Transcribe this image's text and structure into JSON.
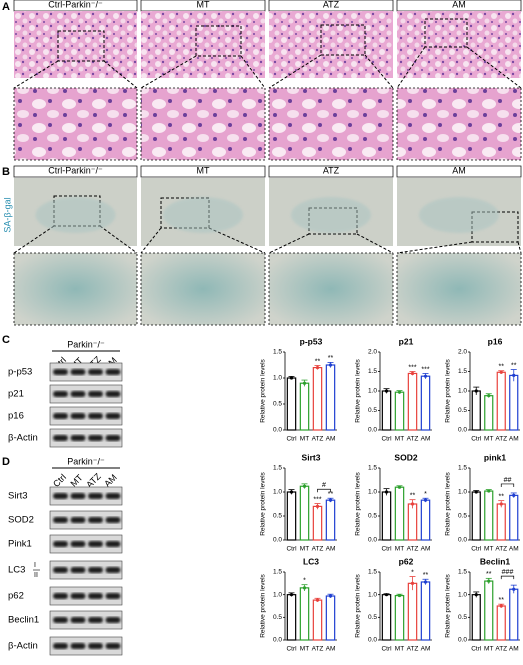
{
  "panel_a": {
    "label": "A",
    "columns": [
      "Ctrl-Parkin⁻/⁻",
      "MT",
      "ATZ",
      "AM"
    ]
  },
  "panel_b": {
    "label": "B",
    "columns": [
      "Ctrl-Parkin⁻/⁻",
      "MT",
      "ATZ",
      "AM"
    ],
    "stain": "SA-β-gal"
  },
  "panel_c": {
    "label": "C",
    "blot": {
      "group": "Parkin⁻/⁻",
      "lanes": [
        "Ctrl",
        "MT",
        "ATZ",
        "AM"
      ],
      "rows": [
        "p-p53",
        "p21",
        "p16",
        "β-Actin"
      ]
    }
  },
  "panel_d": {
    "label": "D",
    "blot": {
      "group": "Parkin⁻/⁻",
      "lanes": [
        "Ctrl",
        "MT",
        "ATZ",
        "AM"
      ],
      "rows": [
        "Sirt3",
        "SOD2",
        "Pink1",
        "LC3",
        "p62",
        "Beclin1",
        "β-Actin"
      ],
      "lc3_forms": [
        "I",
        "II"
      ]
    }
  },
  "chart_data": [
    {
      "type": "bar",
      "title": "p-p53",
      "y_label": "Relative protein levels",
      "categories": [
        "Ctrl",
        "MT",
        "ATZ",
        "AM"
      ],
      "colors": [
        "#000000",
        "#2ca02c",
        "#e8413c",
        "#1f3fd1"
      ],
      "values": [
        1.0,
        0.9,
        1.2,
        1.25
      ],
      "errors": [
        0.03,
        0.06,
        0.04,
        0.05
      ],
      "significance": [
        null,
        null,
        "**",
        "**"
      ],
      "ylim": [
        0,
        1.5
      ],
      "yticks": [
        {
          "value": 0,
          "label": "0.0"
        },
        0.5,
        {
          "value": 1,
          "label": "1.0"
        },
        1.5
      ]
    },
    {
      "type": "bar",
      "title": "p21",
      "y_label": "Relative protein levels",
      "categories": [
        "Ctrl",
        "MT",
        "ATZ",
        "AM"
      ],
      "colors": [
        "#000000",
        "#2ca02c",
        "#e8413c",
        "#1f3fd1"
      ],
      "values": [
        1.0,
        0.97,
        1.45,
        1.38
      ],
      "errors": [
        0.06,
        0.04,
        0.05,
        0.07
      ],
      "significance": [
        null,
        null,
        "***",
        "***"
      ],
      "ylim": [
        0,
        2
      ],
      "yticks": [
        {
          "value": 0,
          "label": "0.0"
        },
        0.5,
        {
          "value": 1,
          "label": "1.0"
        },
        1.5,
        {
          "value": 2,
          "label": "2.0"
        }
      ]
    },
    {
      "type": "bar",
      "title": "p16",
      "y_label": "Relative protein levels",
      "categories": [
        "Ctrl",
        "MT",
        "ATZ",
        "AM"
      ],
      "colors": [
        "#000000",
        "#2ca02c",
        "#e8413c",
        "#1f3fd1"
      ],
      "values": [
        1.0,
        0.88,
        1.48,
        1.4
      ],
      "errors": [
        0.1,
        0.05,
        0.04,
        0.15
      ],
      "significance": [
        null,
        null,
        "**",
        "**"
      ],
      "ylim": [
        0,
        2
      ],
      "yticks": [
        {
          "value": 0,
          "label": "0.0"
        },
        0.5,
        {
          "value": 1,
          "label": "1.0"
        },
        1.5,
        {
          "value": 2,
          "label": "2.0"
        }
      ]
    },
    {
      "type": "bar",
      "title": "Sirt3",
      "y_label": "Relative protein levels",
      "categories": [
        "Ctrl",
        "MT",
        "ATZ",
        "AM"
      ],
      "colors": [
        "#000000",
        "#2ca02c",
        "#e8413c",
        "#1f3fd1"
      ],
      "values": [
        1.0,
        1.12,
        0.7,
        0.83
      ],
      "errors": [
        0.05,
        0.05,
        0.06,
        0.04
      ],
      "significance": [
        null,
        null,
        "***",
        "**"
      ],
      "bracket_label": "#",
      "ylim": [
        0,
        1.5
      ],
      "yticks": [
        {
          "value": 0,
          "label": "0.0"
        },
        0.5,
        {
          "value": 1,
          "label": "1.0"
        },
        1.5
      ]
    },
    {
      "type": "bar",
      "title": "SOD2",
      "y_label": "Relative protein levels",
      "categories": [
        "Ctrl",
        "MT",
        "ATZ",
        "AM"
      ],
      "colors": [
        "#000000",
        "#2ca02c",
        "#e8413c",
        "#1f3fd1"
      ],
      "values": [
        1.0,
        1.1,
        0.75,
        0.83
      ],
      "errors": [
        0.07,
        0.03,
        0.09,
        0.04
      ],
      "significance": [
        null,
        null,
        "**",
        "*"
      ],
      "ylim": [
        0,
        1.5
      ],
      "yticks": [
        {
          "value": 0,
          "label": "0.0"
        },
        0.5,
        {
          "value": 1,
          "label": "1.0"
        },
        1.5
      ]
    },
    {
      "type": "bar",
      "title": "pink1",
      "y_label": "Relative protein levels",
      "categories": [
        "Ctrl",
        "MT",
        "ATZ",
        "AM"
      ],
      "colors": [
        "#000000",
        "#2ca02c",
        "#e8413c",
        "#1f3fd1"
      ],
      "values": [
        1.0,
        1.02,
        0.75,
        0.93
      ],
      "errors": [
        0.03,
        0.03,
        0.07,
        0.05
      ],
      "significance": [
        null,
        null,
        "**",
        null
      ],
      "bracket_label": "##",
      "ylim": [
        0,
        1.5
      ],
      "yticks": [
        {
          "value": 0,
          "label": "0.0"
        },
        0.5,
        {
          "value": 1,
          "label": "1.0"
        },
        1.5
      ]
    },
    {
      "type": "bar",
      "title": "LC3",
      "y_label": "Relative protein levels",
      "categories": [
        "Ctrl",
        "MT",
        "ATZ",
        "AM"
      ],
      "colors": [
        "#000000",
        "#2ca02c",
        "#e8413c",
        "#1f3fd1"
      ],
      "values": [
        1.0,
        1.15,
        0.88,
        0.97
      ],
      "errors": [
        0.04,
        0.07,
        0.04,
        0.04
      ],
      "significance": [
        null,
        "*",
        null,
        null
      ],
      "ylim": [
        0,
        1.5
      ],
      "yticks": [
        {
          "value": 0,
          "label": "0.0"
        },
        0.5,
        {
          "value": 1,
          "label": "1.0"
        },
        1.5
      ]
    },
    {
      "type": "bar",
      "title": "p62",
      "y_label": "Relative protein levels",
      "categories": [
        "Ctrl",
        "MT",
        "ATZ",
        "AM"
      ],
      "colors": [
        "#000000",
        "#2ca02c",
        "#e8413c",
        "#1f3fd1"
      ],
      "values": [
        1.0,
        0.98,
        1.25,
        1.28
      ],
      "errors": [
        0.02,
        0.03,
        0.15,
        0.06
      ],
      "significance": [
        null,
        null,
        "*",
        "**"
      ],
      "ylim": [
        0,
        1.5
      ],
      "yticks": [
        {
          "value": 0,
          "label": "0.0"
        },
        0.5,
        {
          "value": 1,
          "label": "1.0"
        },
        1.5
      ]
    },
    {
      "type": "bar",
      "title": "Beclin1",
      "y_label": "Relative protein levels",
      "categories": [
        "Ctrl",
        "MT",
        "ATZ",
        "AM"
      ],
      "colors": [
        "#000000",
        "#2ca02c",
        "#e8413c",
        "#1f3fd1"
      ],
      "values": [
        1.0,
        1.3,
        0.75,
        1.12
      ],
      "errors": [
        0.06,
        0.06,
        0.04,
        0.09
      ],
      "significance": [
        null,
        "**",
        "**",
        null
      ],
      "bracket_label": "###",
      "ylim": [
        0,
        1.5
      ],
      "yticks": [
        {
          "value": 0,
          "label": "0.0"
        },
        0.5,
        {
          "value": 1,
          "label": "1.0"
        },
        1.5
      ]
    }
  ]
}
